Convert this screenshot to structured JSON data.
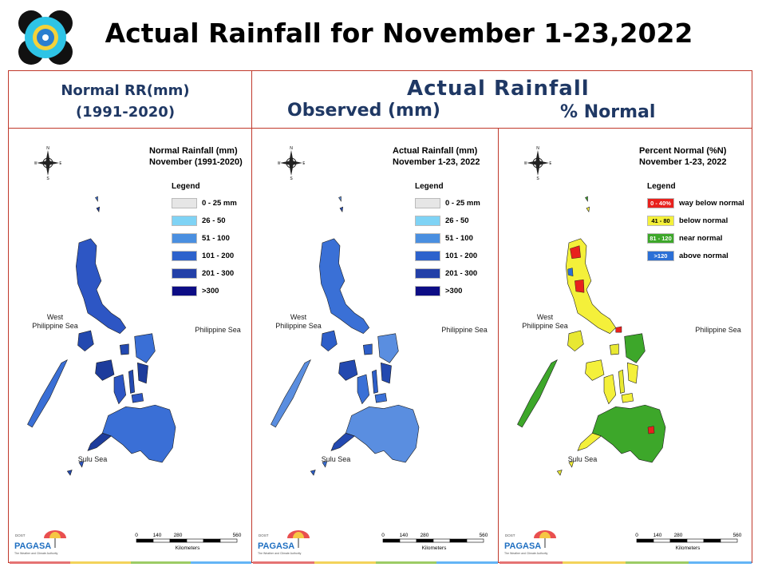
{
  "title": "Actual Rainfall for November 1-23,2022",
  "header": {
    "normal_line1": "Normal RR(mm)",
    "normal_line2": "(1991-2020)",
    "actual": "Actual Rainfall",
    "observed": "Observed (mm)",
    "percent": "% Normal"
  },
  "panels": [
    {
      "title_line1": "Normal Rainfall (mm)",
      "title_line2": "November (1991-2020)",
      "legend_title": "Legend",
      "legend": [
        {
          "label": "0 - 25 mm",
          "color": "#e6e6e6"
        },
        {
          "label": "26 - 50",
          "color": "#7fd3f5"
        },
        {
          "label": "51 - 100",
          "color": "#4a8fe0"
        },
        {
          "label": "101 - 200",
          "color": "#2d62cc"
        },
        {
          "label": "201 - 300",
          "color": "#2340a8"
        },
        {
          "label": ">300",
          "color": "#0d0d85"
        }
      ],
      "map_colors": [
        "#2d56c4",
        "#2349b0",
        "#3a6fd6",
        "#1d3c9c"
      ]
    },
    {
      "title_line1": "Actual Rainfall (mm)",
      "title_line2": "November 1-23, 2022",
      "legend_title": "Legend",
      "legend": [
        {
          "label": "0 - 25 mm",
          "color": "#e6e6e6"
        },
        {
          "label": "26 - 50",
          "color": "#7fd3f5"
        },
        {
          "label": "51 - 100",
          "color": "#4a8fe0"
        },
        {
          "label": "101 - 200",
          "color": "#2d62cc"
        },
        {
          "label": "201 - 300",
          "color": "#2340a8"
        },
        {
          "label": ">300",
          "color": "#0d0d85"
        }
      ],
      "map_colors": [
        "#3a70d6",
        "#2d5ec8",
        "#5a8ee0",
        "#2349b0"
      ]
    },
    {
      "title_line1": "Percent Normal (%N)",
      "title_line2": "November 1-23, 2022",
      "legend_title": "Legend",
      "legend": [
        {
          "label": "way below normal",
          "swatch": "0 - 40%",
          "color": "#e8211d"
        },
        {
          "label": "below normal",
          "swatch": "41 - 80",
          "color": "#f4f03a"
        },
        {
          "label": "near normal",
          "swatch": "81 - 120",
          "color": "#3da72a"
        },
        {
          "label": "above normal",
          "swatch": ">120",
          "color": "#2b6fd6"
        }
      ],
      "map_colors": [
        "#f4f03a",
        "#e8e832",
        "#3da72a",
        "#f4f03a"
      ]
    }
  ],
  "seas": {
    "west": "West\nPhilippine Sea",
    "east": "Philippine Sea",
    "sulu": "Sulu Sea"
  },
  "scale": {
    "ticks": [
      "0",
      "140",
      "280",
      "560"
    ],
    "unit": "Kilometers"
  },
  "footer_logo": {
    "top": "DOST",
    "brand": "PAGASA",
    "tagline": "The Weather and Climate Authority",
    "accent": "#1f6fc1"
  },
  "colors": {
    "frame": "#c0392b",
    "heading": "#1f3864",
    "bar_red": "#e57373",
    "bar_yellow": "#f3d35a",
    "bar_green": "#9ccc65",
    "bar_blue": "#64b5f6"
  }
}
